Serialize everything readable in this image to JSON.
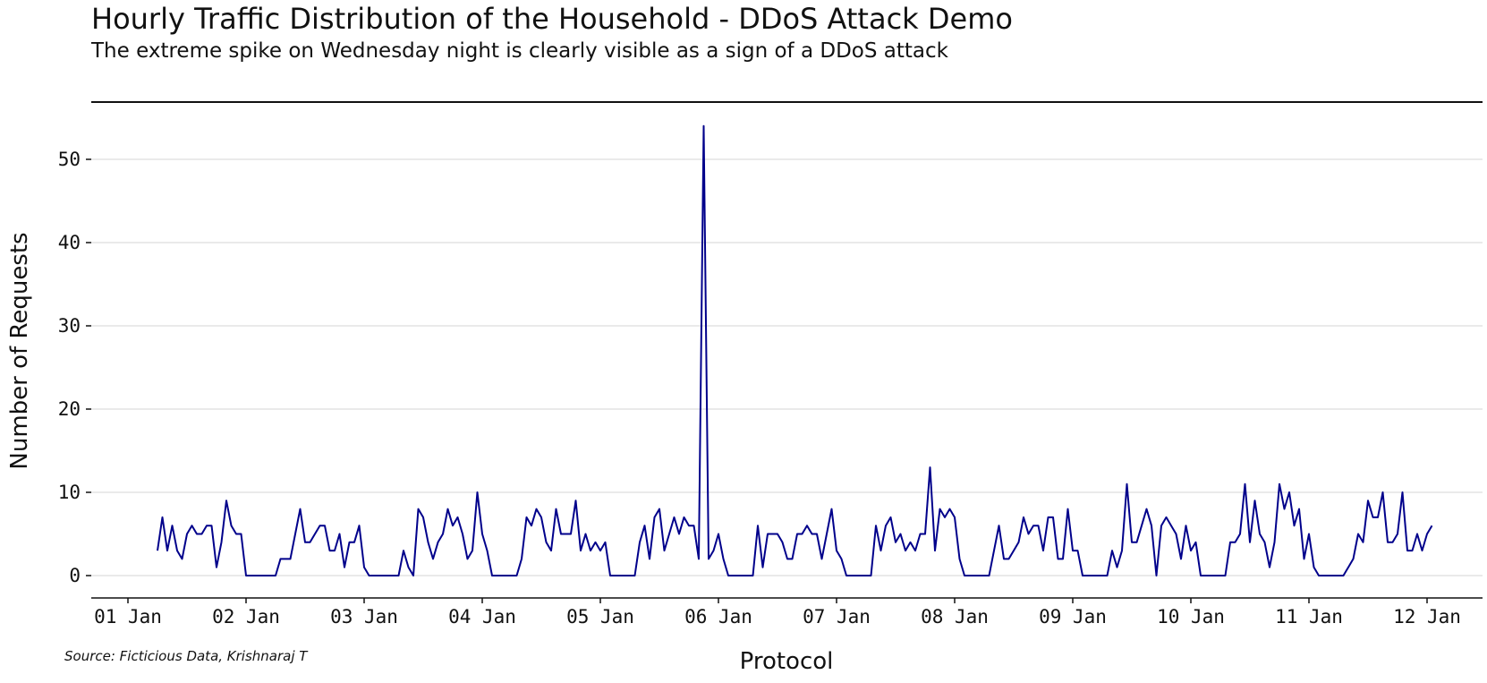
{
  "chart_data": {
    "type": "line",
    "title": "Hourly Traffic Distribution of the Household - DDoS Attack Demo",
    "subtitle": "The extreme spike on Wednesday night is clearly visible as a sign of a DDoS attack",
    "xlabel": "Protocol",
    "ylabel": "Number of Requests",
    "source": "Source: Ficticious Data, Krishnaraj T",
    "x_tick_labels": [
      "01 Jan",
      "02 Jan",
      "03 Jan",
      "04 Jan",
      "05 Jan",
      "06 Jan",
      "07 Jan",
      "08 Jan",
      "09 Jan",
      "10 Jan",
      "11 Jan",
      "12 Jan"
    ],
    "y_ticks": [
      0,
      10,
      20,
      30,
      40,
      50
    ],
    "xlim": [
      "2023-01-01T00:00",
      "2023-01-12T00:00"
    ],
    "ylim": [
      -2.8,
      57
    ],
    "line_color": "#00008b",
    "grid": "horizontal",
    "series": [
      {
        "x_start": "2023-01-01T06:00",
        "x_step_hours": 1,
        "values": [
          3,
          7,
          3,
          6,
          3,
          2,
          5,
          6,
          5,
          5,
          6,
          6,
          1,
          4,
          9,
          6,
          5,
          5,
          0,
          0,
          0,
          0,
          0,
          0,
          0,
          2,
          2,
          2,
          5,
          8,
          4,
          4,
          5,
          6,
          6,
          3,
          3,
          5,
          1,
          4,
          4,
          6,
          1,
          0,
          0,
          0,
          0,
          0,
          0,
          0,
          3,
          1,
          0,
          8,
          7,
          4,
          2,
          4,
          5,
          8,
          6,
          7,
          5,
          2,
          3,
          10,
          5,
          3,
          0,
          0,
          0,
          0,
          0,
          0,
          2,
          7,
          6,
          8,
          7,
          4,
          3,
          8,
          5,
          5,
          5,
          9,
          3,
          5,
          3,
          4,
          3,
          4,
          0,
          0,
          0,
          0,
          0,
          0,
          4,
          6,
          2,
          7,
          8,
          3,
          5,
          7,
          5,
          7,
          6,
          6,
          2,
          54,
          2,
          3,
          5,
          2,
          0,
          0,
          0,
          0,
          0,
          0,
          6,
          1,
          5,
          5,
          5,
          4,
          2,
          2,
          5,
          5,
          6,
          5,
          5,
          2,
          5,
          8,
          3,
          2,
          0,
          0,
          0,
          0,
          0,
          0,
          6,
          3,
          6,
          7,
          4,
          5,
          3,
          4,
          3,
          5,
          5,
          13,
          3,
          8,
          7,
          8,
          7,
          2,
          0,
          0,
          0,
          0,
          0,
          0,
          3,
          6,
          2,
          2,
          3,
          4,
          7,
          5,
          6,
          6,
          3,
          7,
          7,
          2,
          2,
          8,
          3,
          3,
          0,
          0,
          0,
          0,
          0,
          0,
          3,
          1,
          3,
          11,
          4,
          4,
          6,
          8,
          6,
          0,
          6,
          7,
          6,
          5,
          2,
          6,
          3,
          4,
          0,
          0,
          0,
          0,
          0,
          0,
          4,
          4,
          5,
          11,
          4,
          9,
          5,
          4,
          1,
          4,
          11,
          8,
          10,
          6,
          8,
          2,
          5,
          1,
          0,
          0,
          0,
          0,
          0,
          0,
          1,
          2,
          5,
          4,
          9,
          7,
          7,
          10,
          4,
          4,
          5,
          10,
          3,
          3,
          5,
          3,
          5,
          6
        ]
      }
    ]
  }
}
